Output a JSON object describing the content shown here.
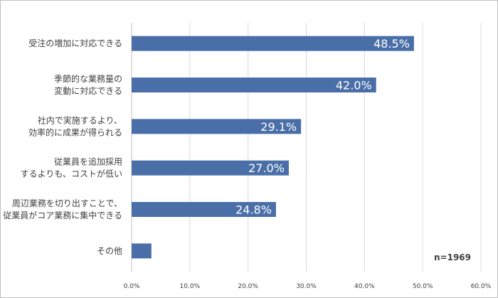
{
  "chart_data": {
    "type": "bar",
    "orientation": "horizontal",
    "categories": [
      [
        "受注の増加に対応できる"
      ],
      [
        "季節的な業務量の",
        "変動に対応できる"
      ],
      [
        "社内で実施するより、",
        "効率的に成果が得られる"
      ],
      [
        "従業員を追加採用",
        "するよりも、コストが低い"
      ],
      [
        "周辺業務を切り出すことで、",
        "従業員がコア業務に集中できる"
      ],
      [
        "その他"
      ]
    ],
    "values": [
      48.5,
      42.0,
      29.1,
      27.0,
      24.8,
      3.4
    ],
    "data_labels": [
      "48.5%",
      "42.0%",
      "29.1%",
      "27.0%",
      "24.8%",
      ""
    ],
    "xlim": [
      0,
      60
    ],
    "x_ticks": [
      "0.0%",
      "10.0%",
      "20.0%",
      "30.0%",
      "40.0%",
      "50.0%",
      "60.0%"
    ],
    "grid": true,
    "bar_color": "#4a6fa8",
    "note": "n=1969"
  }
}
